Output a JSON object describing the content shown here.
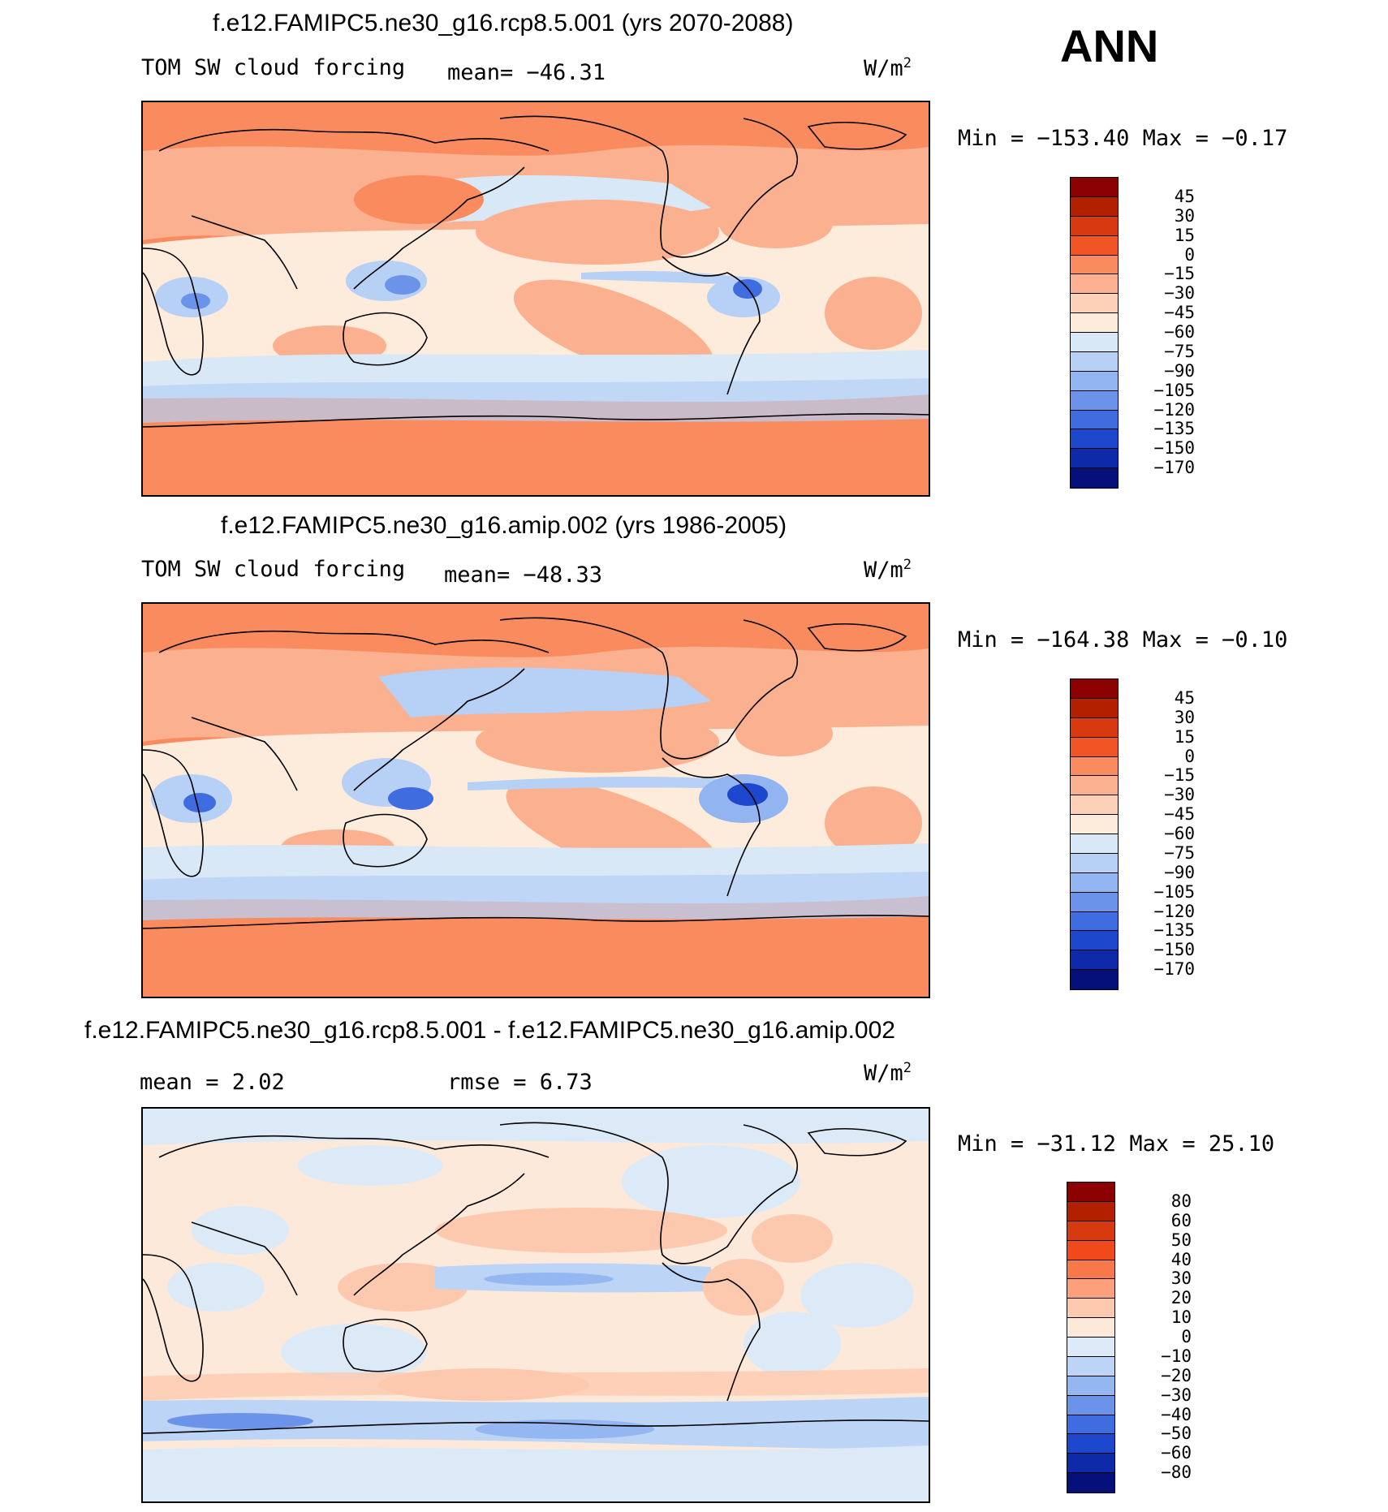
{
  "season": "ANN",
  "units": {
    "base": "W/m",
    "exp": "2"
  },
  "panels": [
    {
      "title": "f.e12.FAMIPC5.ne30_g16.rcp8.5.001 (yrs 2070-2088)",
      "variable": "TOM SW cloud forcing",
      "stat1": "mean= −46.31",
      "stat2": "",
      "minmax": "Min = −153.40 Max =  −0.17",
      "bg": "#f98b5f",
      "colorbar_labels": [
        "45",
        "30",
        "15",
        "0",
        "−15",
        "−30",
        "−45",
        "−60",
        "−75",
        "−90",
        "−105",
        "−120",
        "−135",
        "−150",
        "−170"
      ],
      "colorbar_colors": [
        "#8b0000",
        "#b22000",
        "#d83a10",
        "#f25525",
        "#f98b5f",
        "#fbb08f",
        "#fdd0b8",
        "#fdebdc",
        "#d9e8f7",
        "#b7d0f5",
        "#92b4f1",
        "#6b93ea",
        "#3f6de0",
        "#1d47cc",
        "#0e2aa8",
        "#06107a"
      ]
    },
    {
      "title": "f.e12.FAMIPC5.ne30_g16.amip.002 (yrs 1986-2005)",
      "variable": "TOM SW cloud forcing",
      "stat1": "mean= −48.33",
      "stat2": "",
      "minmax": "Min = −164.38 Max =  −0.10",
      "bg": "#f98b5f",
      "colorbar_labels": [
        "45",
        "30",
        "15",
        "0",
        "−15",
        "−30",
        "−45",
        "−60",
        "−75",
        "−90",
        "−105",
        "−120",
        "−135",
        "−150",
        "−170"
      ],
      "colorbar_colors": [
        "#8b0000",
        "#b22000",
        "#d83a10",
        "#f25525",
        "#f98b5f",
        "#fbb08f",
        "#fdd0b8",
        "#fdebdc",
        "#d9e8f7",
        "#b7d0f5",
        "#92b4f1",
        "#6b93ea",
        "#3f6de0",
        "#1d47cc",
        "#0e2aa8",
        "#06107a"
      ]
    },
    {
      "title": "f.e12.FAMIPC5.ne30_g16.rcp8.5.001 - f.e12.FAMIPC5.ne30_g16.amip.002",
      "variable": "",
      "stat1": "mean =   2.02",
      "stat2": "rmse =   6.73",
      "minmax": "Min = −31.12 Max =  25.10",
      "bg": "#fdebdc",
      "colorbar_labels": [
        "80",
        "60",
        "50",
        "40",
        "30",
        "20",
        "10",
        "0",
        "−10",
        "−20",
        "−30",
        "−40",
        "−50",
        "−60",
        "−80"
      ],
      "colorbar_colors": [
        "#8b0000",
        "#b22000",
        "#d83a10",
        "#f04a1c",
        "#f8784a",
        "#fba07a",
        "#fdc9ae",
        "#fde9da",
        "#dceaf8",
        "#bcd4f6",
        "#94b7f2",
        "#6b93ea",
        "#3f6de0",
        "#1d47cc",
        "#0e2aa8",
        "#06107a"
      ]
    }
  ]
}
